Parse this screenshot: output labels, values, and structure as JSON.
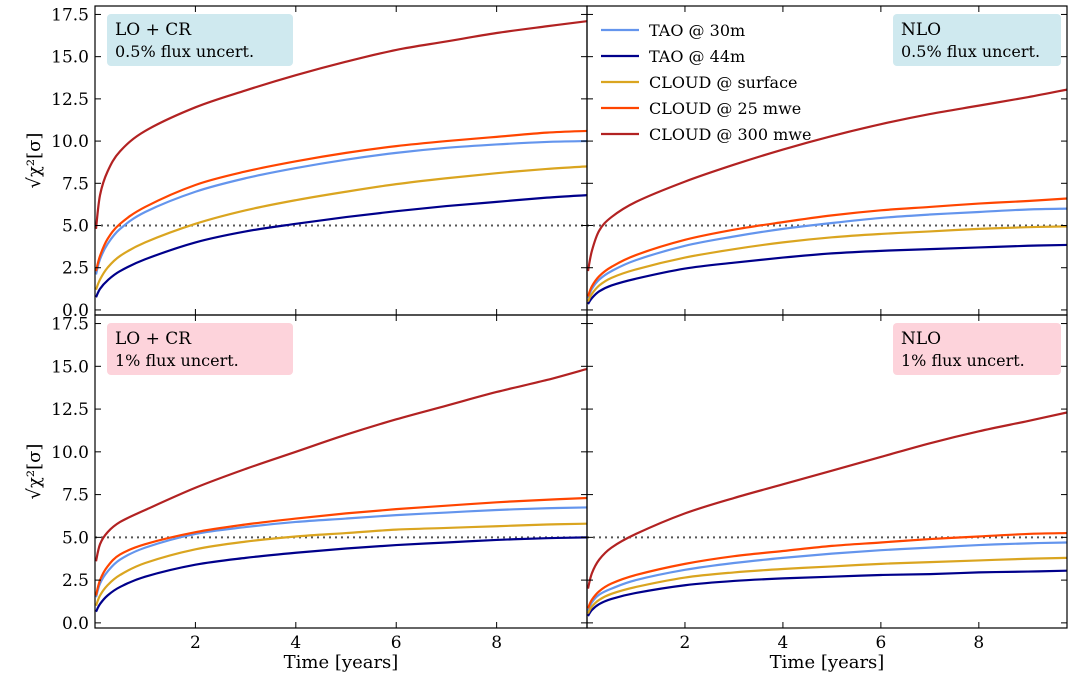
{
  "chart_data": {
    "type": "line",
    "xlabel": "Time [years]",
    "ylabel": "√χ²[σ]",
    "xlim": [
      0,
      9.8
    ],
    "ylim": [
      -0.3,
      18.0
    ],
    "xticks": [
      2,
      4,
      6,
      8
    ],
    "yticks": [
      0.0,
      2.5,
      5.0,
      7.5,
      10.0,
      12.5,
      15.0,
      17.5
    ],
    "ytick_labels": [
      "0.0",
      "2.5",
      "5.0",
      "7.5",
      "10.0",
      "12.5",
      "15.0",
      "17.5"
    ],
    "threshold": 5.0,
    "legend_placement": "top-left of top-right panel",
    "colors": {
      "tao30": "#6495ed",
      "tao44": "#00008b",
      "cloud_surface": "#daa520",
      "cloud_25": "#ff4500",
      "cloud_300": "#b22222",
      "box_blue": "#cfe9ef",
      "box_pink": "#fdd3db"
    },
    "legend": [
      {
        "key": "tao30",
        "label": "TAO @ 30m"
      },
      {
        "key": "tao44",
        "label": "TAO @ 44m"
      },
      {
        "key": "cloud_surface",
        "label": "CLOUD @ surface"
      },
      {
        "key": "cloud_25",
        "label": "CLOUD @ 25 mwe"
      },
      {
        "key": "cloud_300",
        "label": "CLOUD @ 300 mwe"
      }
    ],
    "panels": [
      {
        "id": "top-left",
        "box_title": "LO + CR",
        "box_subtitle": "0.5% flux uncert.",
        "box_color": "box_blue",
        "box_side": "left",
        "x": [
          0.02,
          0.1,
          0.25,
          0.5,
          1,
          2,
          3,
          4,
          5,
          6,
          7,
          8,
          9,
          9.8
        ],
        "series": [
          {
            "key": "tao30",
            "values": [
              2.1,
              3.0,
              3.9,
              4.8,
              5.8,
              7.0,
              7.8,
              8.4,
              8.9,
              9.3,
              9.6,
              9.8,
              9.95,
              10.0
            ]
          },
          {
            "key": "tao44",
            "values": [
              0.75,
              1.25,
              1.75,
              2.3,
              3.0,
              4.0,
              4.65,
              5.1,
              5.5,
              5.85,
              6.15,
              6.4,
              6.65,
              6.8
            ]
          },
          {
            "key": "cloud_surface",
            "values": [
              1.2,
              1.8,
              2.5,
              3.2,
              4.0,
              5.1,
              5.9,
              6.5,
              7.0,
              7.45,
              7.8,
              8.1,
              8.35,
              8.5
            ]
          },
          {
            "key": "cloud_25",
            "values": [
              2.3,
              3.2,
              4.2,
              5.1,
              6.1,
              7.4,
              8.2,
              8.8,
              9.3,
              9.7,
              10.0,
              10.25,
              10.5,
              10.6
            ]
          },
          {
            "key": "cloud_300",
            "values": [
              4.8,
              6.8,
              8.2,
              9.4,
              10.6,
              12.0,
              13.0,
              13.9,
              14.7,
              15.4,
              15.9,
              16.4,
              16.8,
              17.1
            ]
          }
        ]
      },
      {
        "id": "top-right",
        "box_title": "NLO",
        "box_subtitle": "0.5% flux uncert.",
        "box_color": "box_blue",
        "box_side": "right",
        "x": [
          0.02,
          0.1,
          0.25,
          0.5,
          1,
          2,
          3,
          4,
          5,
          6,
          7,
          8,
          9,
          9.8
        ],
        "series": [
          {
            "key": "tao30",
            "values": [
              0.7,
              1.25,
              1.8,
              2.3,
              2.95,
              3.8,
              4.35,
              4.8,
              5.15,
              5.45,
              5.65,
              5.8,
              5.95,
              6.0
            ]
          },
          {
            "key": "tao44",
            "values": [
              0.35,
              0.7,
              1.1,
              1.45,
              1.85,
              2.45,
              2.8,
              3.1,
              3.35,
              3.5,
              3.6,
              3.7,
              3.8,
              3.85
            ]
          },
          {
            "key": "cloud_surface",
            "values": [
              0.5,
              0.95,
              1.45,
              1.9,
              2.4,
              3.1,
              3.6,
              4.0,
              4.3,
              4.5,
              4.65,
              4.8,
              4.9,
              4.95
            ]
          },
          {
            "key": "cloud_25",
            "values": [
              0.8,
              1.4,
              2.0,
              2.55,
              3.25,
              4.15,
              4.75,
              5.2,
              5.6,
              5.9,
              6.1,
              6.3,
              6.45,
              6.6
            ]
          },
          {
            "key": "cloud_300",
            "values": [
              2.3,
              3.5,
              4.7,
              5.5,
              6.4,
              7.6,
              8.6,
              9.5,
              10.3,
              11.0,
              11.6,
              12.1,
              12.6,
              13.05
            ]
          }
        ]
      },
      {
        "id": "bottom-left",
        "box_title": "LO + CR",
        "box_subtitle": "1% flux uncert.",
        "box_color": "box_pink",
        "box_side": "left",
        "x": [
          0.02,
          0.1,
          0.25,
          0.5,
          1,
          2,
          3,
          4,
          5,
          6,
          7,
          8,
          9,
          9.8
        ],
        "series": [
          {
            "key": "tao30",
            "values": [
              1.5,
              2.3,
              3.0,
              3.7,
              4.4,
              5.2,
              5.6,
              5.9,
              6.1,
              6.3,
              6.45,
              6.6,
              6.7,
              6.75
            ]
          },
          {
            "key": "tao44",
            "values": [
              0.65,
              1.1,
              1.6,
              2.1,
              2.7,
              3.4,
              3.8,
              4.1,
              4.35,
              4.55,
              4.7,
              4.85,
              4.95,
              5.0
            ]
          },
          {
            "key": "cloud_surface",
            "values": [
              1.0,
              1.6,
              2.2,
              2.8,
              3.5,
              4.3,
              4.75,
              5.05,
              5.25,
              5.45,
              5.55,
              5.65,
              5.75,
              5.8
            ]
          },
          {
            "key": "cloud_25",
            "values": [
              1.6,
              2.5,
              3.3,
              4.0,
              4.6,
              5.3,
              5.75,
              6.1,
              6.4,
              6.65,
              6.85,
              7.05,
              7.2,
              7.3
            ]
          },
          {
            "key": "cloud_300",
            "values": [
              3.6,
              4.6,
              5.3,
              5.9,
              6.6,
              7.9,
              9.0,
              10.0,
              11.0,
              11.9,
              12.7,
              13.5,
              14.2,
              14.85
            ]
          }
        ]
      },
      {
        "id": "bottom-right",
        "box_title": "NLO",
        "box_subtitle": "1% flux uncert.",
        "box_color": "box_pink",
        "box_side": "right",
        "x": [
          0.02,
          0.1,
          0.25,
          0.5,
          1,
          2,
          3,
          4,
          5,
          6,
          7,
          8,
          9,
          9.8
        ],
        "series": [
          {
            "key": "tao30",
            "values": [
              0.7,
              1.2,
              1.65,
              2.0,
              2.5,
              3.1,
              3.5,
              3.8,
              4.05,
              4.25,
              4.4,
              4.55,
              4.65,
              4.7
            ]
          },
          {
            "key": "tao44",
            "values": [
              0.4,
              0.75,
              1.1,
              1.4,
              1.75,
              2.2,
              2.45,
              2.6,
              2.7,
              2.8,
              2.85,
              2.95,
              3.0,
              3.05
            ]
          },
          {
            "key": "cloud_surface",
            "values": [
              0.55,
              0.95,
              1.35,
              1.7,
              2.1,
              2.65,
              2.95,
              3.15,
              3.3,
              3.45,
              3.55,
              3.65,
              3.75,
              3.8
            ]
          },
          {
            "key": "cloud_25",
            "values": [
              0.85,
              1.35,
              1.85,
              2.3,
              2.8,
              3.45,
              3.9,
              4.2,
              4.5,
              4.7,
              4.9,
              5.05,
              5.2,
              5.25
            ]
          },
          {
            "key": "cloud_300",
            "values": [
              2.0,
              2.9,
              3.7,
              4.4,
              5.2,
              6.4,
              7.3,
              8.1,
              8.9,
              9.7,
              10.5,
              11.2,
              11.8,
              12.3
            ]
          }
        ]
      }
    ]
  }
}
